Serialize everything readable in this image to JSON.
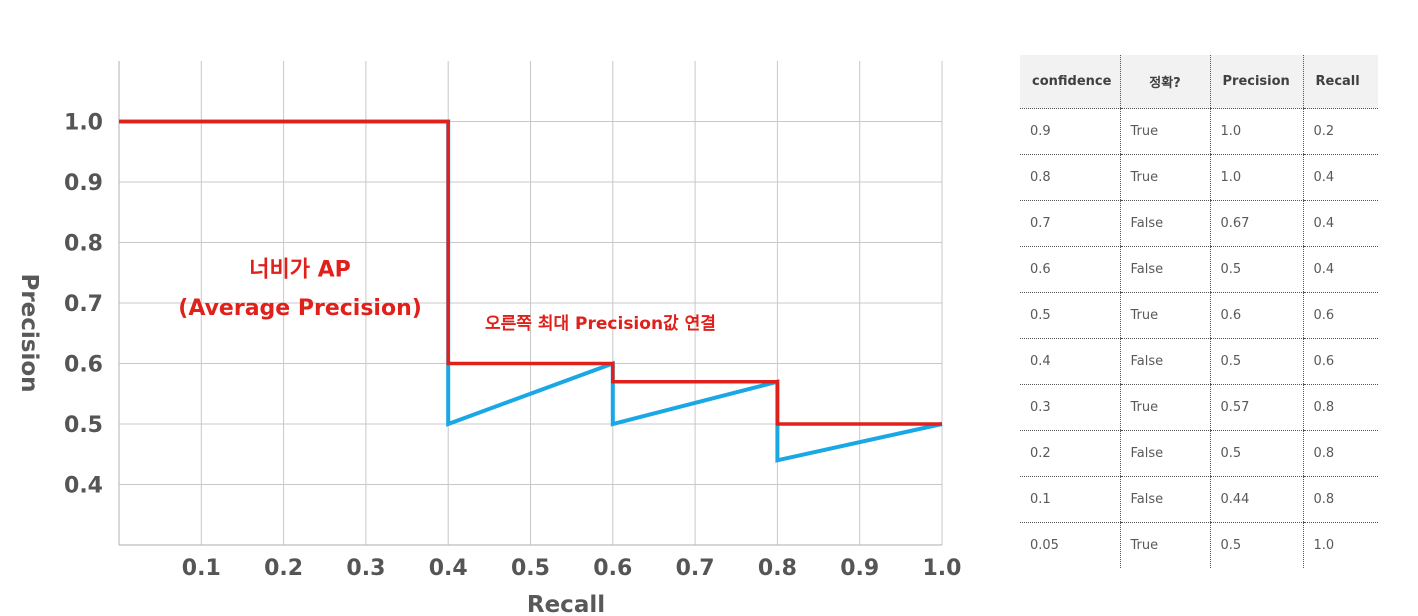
{
  "chart_data": {
    "type": "line",
    "x_ticks": [
      "0.1",
      "0.2",
      "0.3",
      "0.4",
      "0.5",
      "0.6",
      "0.7",
      "0.8",
      "0.9",
      "1.0"
    ],
    "y_ticks": [
      "1.0",
      "0.9",
      "0.8",
      "0.7",
      "0.6",
      "0.5",
      "0.4"
    ],
    "xlabel": "Recall",
    "ylabel": "Precision",
    "xlim": [
      0,
      1.0
    ],
    "ylim": [
      0.3,
      1.1
    ],
    "grid": true,
    "series": [
      {
        "color": "#1aa7e6",
        "x": [
          0.0,
          0.4,
          0.4,
          0.6,
          0.6,
          0.8,
          0.8,
          1.0
        ],
        "y": [
          1.0,
          1.0,
          0.5,
          0.6,
          0.5,
          0.57,
          0.44,
          0.5
        ]
      },
      {
        "color": "#e0201b",
        "x": [
          0.0,
          0.4,
          0.4,
          0.6,
          0.6,
          0.8,
          0.8,
          1.0
        ],
        "y": [
          1.0,
          1.0,
          0.6,
          0.6,
          0.57,
          0.57,
          0.5,
          0.5
        ]
      }
    ],
    "annotations": [
      {
        "text": "너비가 AP",
        "x": 0.22,
        "y": 0.744
      },
      {
        "text": "(Average Precision)",
        "x": 0.22,
        "y": 0.68
      },
      {
        "text": "오른쪽 최대 Precision값 연결",
        "x": 0.585,
        "y": 0.657
      }
    ]
  },
  "table": {
    "headers": [
      "confidence",
      "정확?",
      "Precision",
      "Recall"
    ],
    "rows": [
      [
        "0.9",
        "True",
        "1.0",
        "0.2"
      ],
      [
        "0.8",
        "True",
        "1.0",
        "0.4"
      ],
      [
        "0.7",
        "False",
        "0.67",
        "0.4"
      ],
      [
        "0.6",
        "False",
        "0.5",
        "0.4"
      ],
      [
        "0.5",
        "True",
        "0.6",
        "0.6"
      ],
      [
        "0.4",
        "False",
        "0.5",
        "0.6"
      ],
      [
        "0.3",
        "True",
        "0.57",
        "0.8"
      ],
      [
        "0.2",
        "False",
        "0.5",
        "0.8"
      ],
      [
        "0.1",
        "False",
        "0.44",
        "0.8"
      ],
      [
        "0.05",
        "True",
        "0.5",
        "1.0"
      ]
    ]
  }
}
